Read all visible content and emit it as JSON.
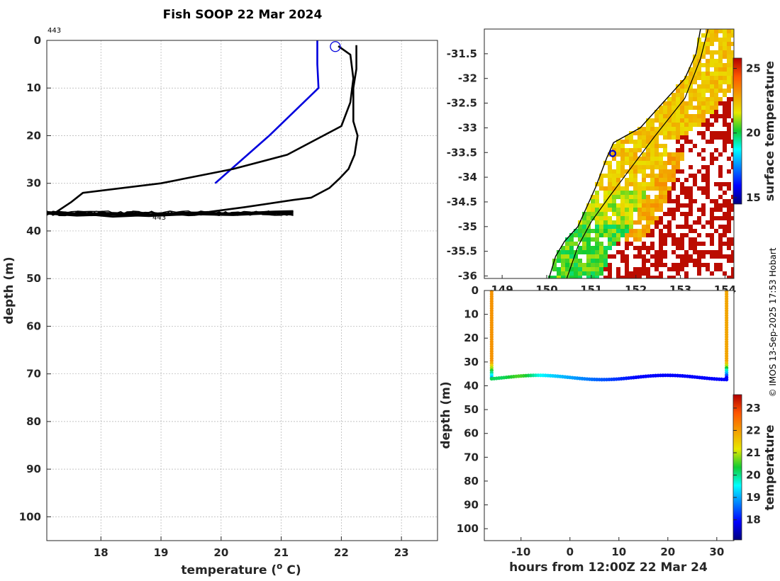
{
  "title": "Fish SOOP 22 Mar 2024",
  "credit": "© IMOS 13-Sep-2025 17:53 Hobart",
  "profile_id": "443",
  "profile_id_repeat": "443",
  "colors": {
    "profile_blue": "#0000dd",
    "profile_black": "#000000",
    "land_sst_hot": "#b00c00",
    "grid": "#b0b0b0"
  },
  "chart_data": [
    {
      "id": "temperature-profile",
      "type": "line",
      "xlabel": "temperature (o C)",
      "xlabel_main": "temperature (",
      "xlabel_sup": "o",
      "xlabel_end": " C)",
      "ylabel": "depth (m)",
      "xlim": [
        17.1,
        23.6
      ],
      "ylim": [
        0,
        105
      ],
      "y_reversed": true,
      "xticks": [
        "18",
        "19",
        "20",
        "21",
        "22",
        "23"
      ],
      "yticks": [
        "0",
        "10",
        "20",
        "30",
        "40",
        "50",
        "60",
        "70",
        "80",
        "90",
        "100"
      ],
      "grid": true,
      "series": [
        {
          "name": "surface-profile",
          "color": "#0000dd",
          "x": [
            21.6,
            21.6,
            21.62,
            21.62,
            20.8,
            19.9
          ],
          "y": [
            0,
            5,
            10,
            10,
            20,
            30
          ]
        },
        {
          "name": "cast-1",
          "color": "#000000",
          "x": [
            21.95,
            22.15,
            22.2,
            22.15,
            22.0,
            21.1,
            20.2,
            19.0,
            17.7,
            17.5,
            17.2
          ],
          "y": [
            1.2,
            3,
            8,
            13,
            18,
            24,
            27,
            30,
            32,
            34,
            36.5
          ]
        },
        {
          "name": "cast-2",
          "color": "#000000",
          "x": [
            22.25,
            22.25,
            22.2,
            22.2,
            22.27,
            22.22,
            22.12,
            21.97,
            21.8,
            21.5,
            21.2,
            20.4,
            19.8,
            19.1,
            18.2,
            17.3
          ],
          "y": [
            1,
            6,
            10,
            17,
            20,
            24,
            27,
            29,
            31,
            33,
            33.5,
            35,
            36,
            36.5,
            37,
            36
          ]
        },
        {
          "name": "bottom-trace",
          "color": "#000000",
          "x": [
            17.1,
            17.6,
            18.2,
            18.8,
            19.5,
            20.2,
            20.9,
            21.2
          ],
          "y": [
            36.2,
            36.6,
            36.4,
            36.7,
            36.3,
            36.5,
            36.1,
            36.0
          ]
        }
      ],
      "markers": [
        {
          "name": "start-circle",
          "x": 21.9,
          "y": 1.3
        }
      ]
    },
    {
      "id": "sst-map",
      "type": "heatmap",
      "colorbar_label": "surface temperature",
      "colorbar_ticks": [
        "15",
        "20",
        "25"
      ],
      "colorbar_range": [
        14.5,
        25.8
      ],
      "xlim": [
        148.6,
        154.2
      ],
      "ylim": [
        -36.05,
        -31.0
      ],
      "xticks": [
        "149",
        "150",
        "151",
        "152",
        "153",
        "154"
      ],
      "yticks": [
        "-31.5",
        "-32",
        "-32.5",
        "-33",
        "-33.5",
        "-34",
        "-34.5",
        "-35",
        "-35.5",
        "-36"
      ],
      "coastline": [
        [
          153.45,
          -31.0
        ],
        [
          153.35,
          -31.5
        ],
        [
          153.1,
          -32.0
        ],
        [
          152.5,
          -32.6
        ],
        [
          152.1,
          -33.0
        ],
        [
          151.5,
          -33.3
        ],
        [
          151.35,
          -33.6
        ],
        [
          151.1,
          -34.2
        ],
        [
          150.9,
          -34.6
        ],
        [
          150.7,
          -35.0
        ],
        [
          150.4,
          -35.3
        ],
        [
          150.2,
          -35.6
        ],
        [
          150.05,
          -36.05
        ]
      ],
      "shelf_contour": [
        [
          153.62,
          -31.0
        ],
        [
          153.45,
          -31.6
        ],
        [
          153.1,
          -32.4
        ],
        [
          152.4,
          -33.2
        ],
        [
          151.9,
          -33.8
        ],
        [
          151.4,
          -34.4
        ],
        [
          151.0,
          -34.9
        ],
        [
          150.7,
          -35.4
        ],
        [
          150.45,
          -36.05
        ]
      ],
      "vessel_position": {
        "lon": 151.48,
        "lat": -33.52
      }
    },
    {
      "id": "time-depth",
      "type": "scatter",
      "xlabel": "hours from 12:00Z 22 Mar 24",
      "ylabel": "depth (m)",
      "colorbar_label": "temperature",
      "colorbar_ticks": [
        "18",
        "19",
        "20",
        "21",
        "22",
        "23"
      ],
      "colorbar_range": [
        17.1,
        23.6
      ],
      "xlim": [
        -17.5,
        33.5
      ],
      "ylim": [
        0,
        105
      ],
      "y_reversed": true,
      "xticks": [
        "-10",
        "0",
        "10",
        "20",
        "30"
      ],
      "yticks": [
        "0",
        "10",
        "20",
        "30",
        "40",
        "50",
        "60",
        "70",
        "80",
        "90",
        "100"
      ],
      "casts": [
        {
          "name": "cast-start",
          "hours": -16.0,
          "surface_temp": 22.1
        },
        {
          "name": "cast-end",
          "hours": 32.0,
          "surface_temp": 21.9
        }
      ],
      "bottom_track": {
        "depth_mean": 36.5,
        "depth_amplitude": 0.9,
        "temp_start": 20.2,
        "temp_end": 17.9
      }
    }
  ]
}
